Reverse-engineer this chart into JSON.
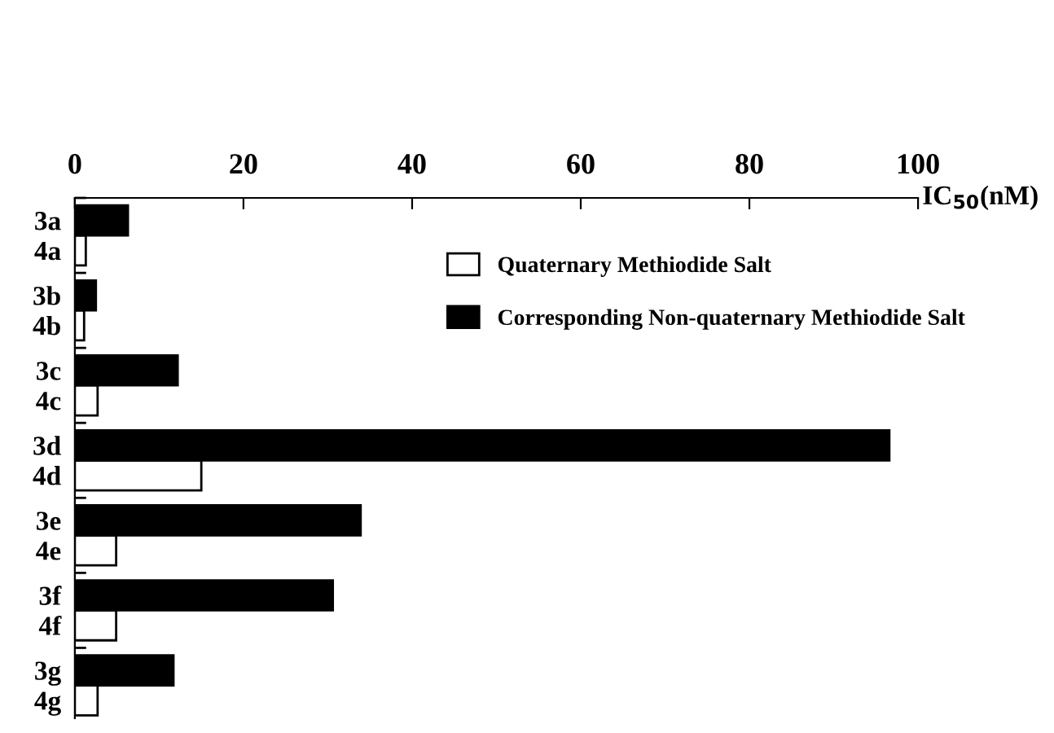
{
  "chart_data": {
    "type": "bar",
    "orientation": "horizontal",
    "xlabel": "IC$_{50}$(nM)",
    "categories": [
      "3a",
      "4a",
      "3b",
      "4b",
      "3c",
      "4c",
      "3d",
      "4d",
      "3e",
      "4e",
      "3f",
      "4f",
      "3g",
      "4g"
    ],
    "series": [
      {
        "name": "Quaternary Methiodide Salt",
        "color": "#ffffff",
        "values": [
          null,
          1.3,
          null,
          1.1,
          null,
          2.7,
          null,
          15.0,
          null,
          4.9,
          null,
          4.9,
          null,
          2.7
        ]
      },
      {
        "name": "Corresponding Non-quaternary Methiodide Salt",
        "color": "#000000",
        "values": [
          6.3,
          null,
          2.5,
          null,
          12.2,
          null,
          96.6,
          null,
          33.9,
          null,
          30.6,
          null,
          11.7,
          null
        ]
      }
    ],
    "xlim": [
      0,
      100
    ],
    "xticks": [
      0,
      20,
      40,
      60,
      80,
      100
    ],
    "legend": "right",
    "grid": false
  }
}
